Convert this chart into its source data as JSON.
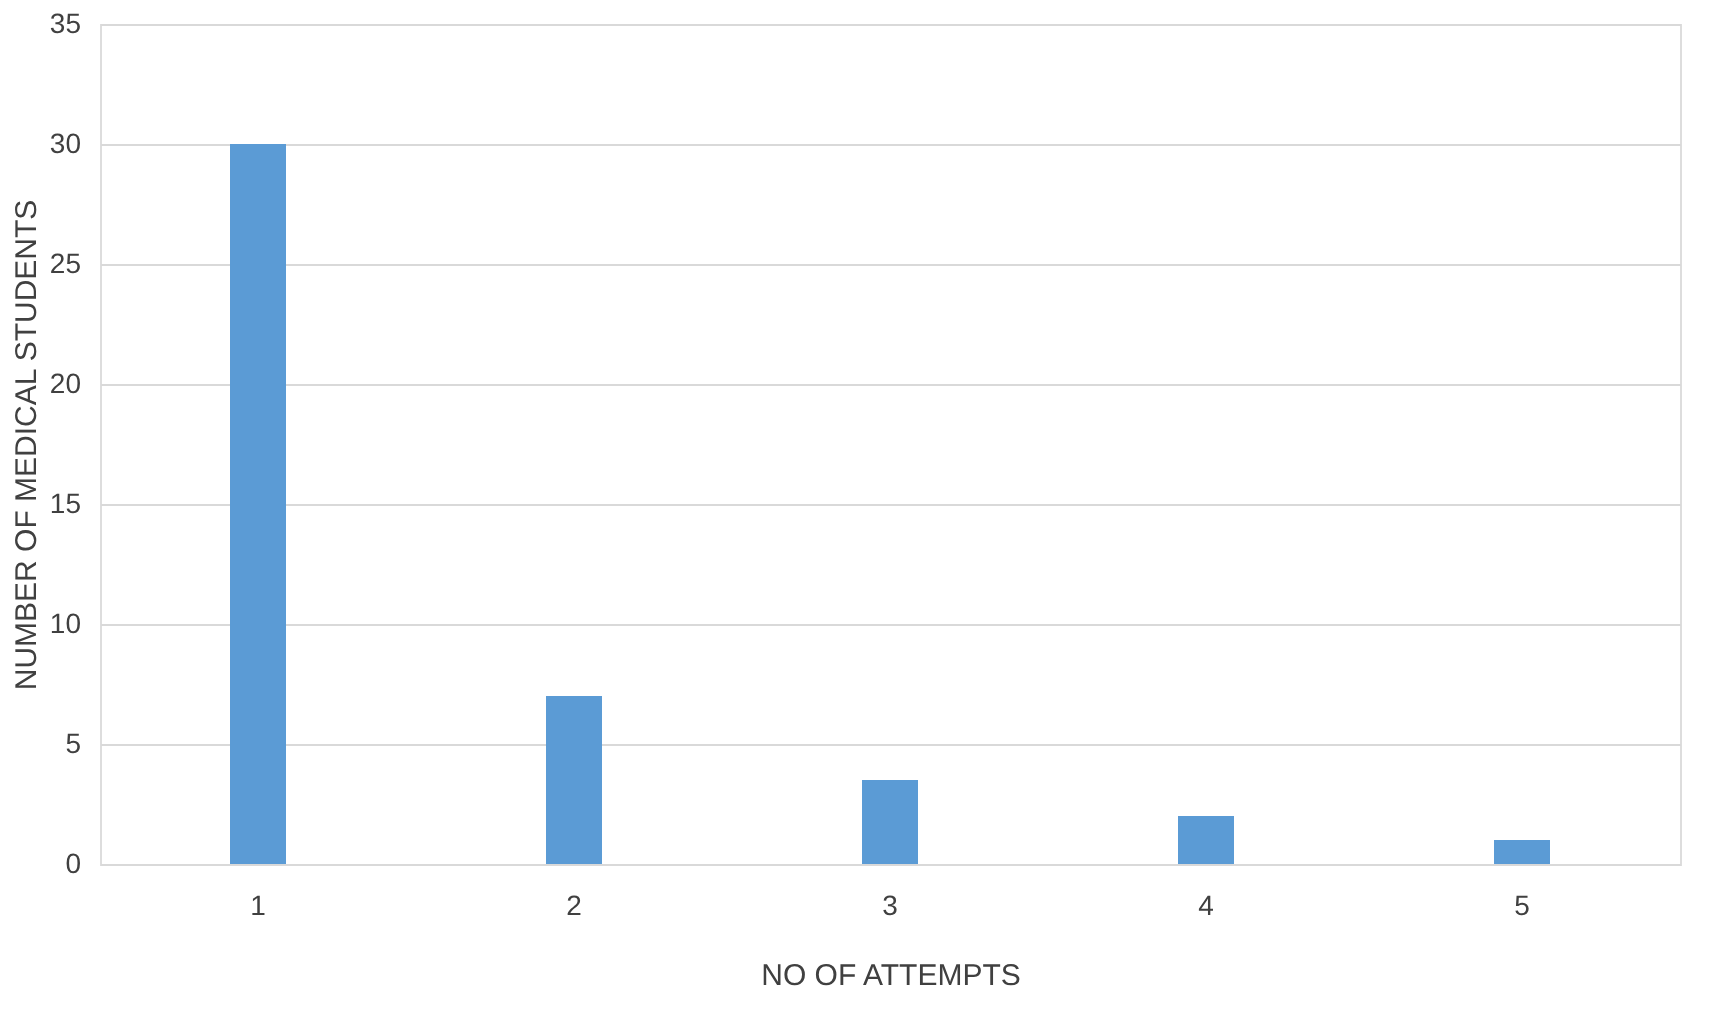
{
  "chart_data": {
    "type": "bar",
    "xlabel": "NO OF ATTEMPTS",
    "ylabel": "NUMBER OF MEDICAL STUDENTS",
    "categories": [
      "1",
      "2",
      "3",
      "4",
      "5"
    ],
    "values": [
      30,
      7,
      3.5,
      2,
      1
    ],
    "color": "#5b9bd5",
    "ylim": [
      0,
      35
    ],
    "yticks": [
      0,
      5,
      10,
      15,
      20,
      25,
      30,
      35
    ],
    "grid": "y"
  }
}
